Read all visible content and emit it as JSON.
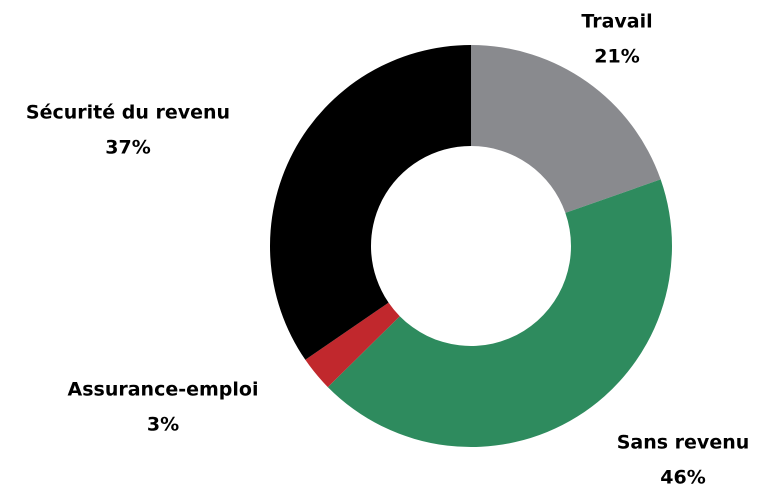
{
  "chart_data": {
    "type": "donut",
    "categories": [
      "Travail",
      "Sans revenu",
      "Assurance-emploi",
      "Sécurité du revenu"
    ],
    "values": [
      21,
      46,
      3,
      37
    ],
    "value_labels": [
      "21%",
      "46%",
      "3%",
      "37%"
    ],
    "colors": [
      "#898a8e",
      "#2e8b5e",
      "#c1282d",
      "#000000"
    ]
  }
}
